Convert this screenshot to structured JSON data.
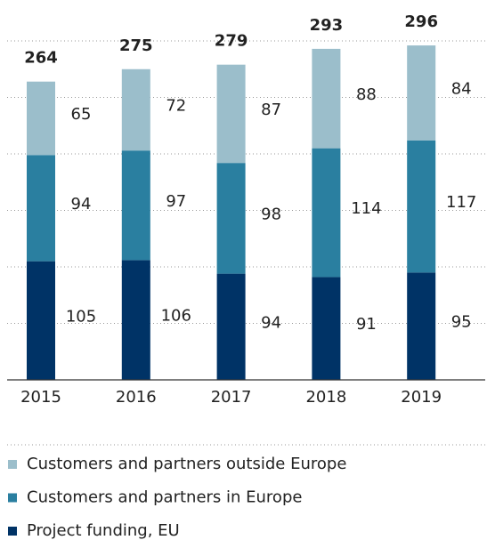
{
  "chart_data": {
    "type": "stacked_bar",
    "categories": [
      "2015",
      "2016",
      "2017",
      "2018",
      "2019"
    ],
    "series": [
      {
        "name": "Project funding, EU",
        "color": "#003366",
        "values": [
          105,
          106,
          94,
          91,
          95
        ]
      },
      {
        "name": "Customers and partners in Europe",
        "color": "#2a7fa0",
        "values": [
          94,
          97,
          98,
          114,
          117
        ]
      },
      {
        "name": "Customers and partners outside Europe",
        "color": "#9bbecb",
        "values": [
          65,
          72,
          87,
          88,
          84
        ]
      }
    ],
    "totals": [
      264,
      275,
      279,
      293,
      296
    ],
    "ylim": [
      0,
      300
    ],
    "yticks": [
      50,
      100,
      150,
      200,
      250,
      300
    ],
    "grid": true
  }
}
